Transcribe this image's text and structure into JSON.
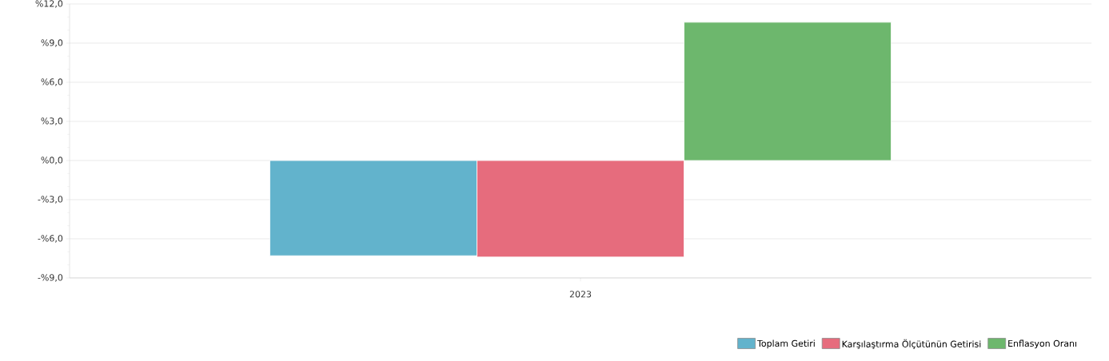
{
  "chart_data": {
    "type": "bar",
    "categories": [
      "2023"
    ],
    "series": [
      {
        "name": "Toplam Getiri",
        "color": "#62b3cc",
        "values": [
          -7.3
        ]
      },
      {
        "name": "Karşılaştırma Ölçütünün Getirisi",
        "color": "#e66c7d",
        "values": [
          -7.4
        ]
      },
      {
        "name": "Enflasyon Oranı",
        "color": "#6db76d",
        "values": [
          10.6
        ]
      }
    ],
    "ylim": [
      -9,
      12
    ],
    "yticks": [
      {
        "value": -9,
        "label": "-%9,0"
      },
      {
        "value": -6,
        "label": "-%6,0"
      },
      {
        "value": -3,
        "label": "-%3,0"
      },
      {
        "value": 0,
        "label": "%0,0"
      },
      {
        "value": 3,
        "label": "%3,0"
      },
      {
        "value": 6,
        "label": "%6,0"
      },
      {
        "value": 9,
        "label": "%9,0"
      },
      {
        "value": 12,
        "label": "%12,0"
      }
    ],
    "grid": "y",
    "legend": "bottom right"
  }
}
